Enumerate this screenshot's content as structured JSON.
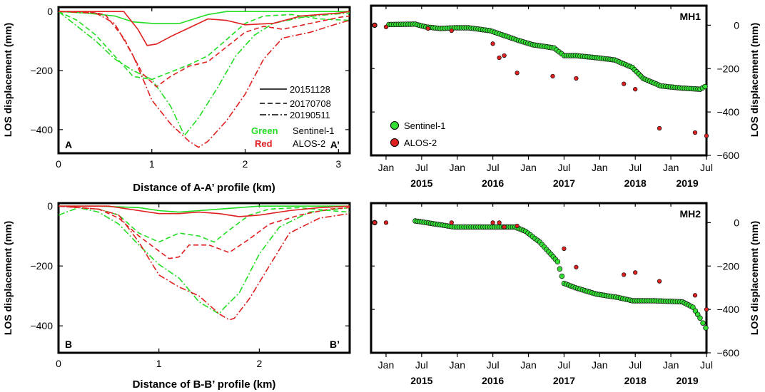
{
  "chart_data": [
    {
      "id": "profile_a",
      "type": "line",
      "corner_left": "A",
      "corner_right": "A’",
      "xlabel": "Distance of A-A’ profile (km)",
      "ylabel": "LOS displacement (mm)",
      "xlim": [
        0,
        3.12
      ],
      "ylim": [
        -480,
        15
      ],
      "xticks": [
        0,
        1,
        2,
        3
      ],
      "yticks": [
        0,
        -200,
        -400
      ],
      "legend_styles": [
        {
          "label": "20151128",
          "dash": "solid"
        },
        {
          "label": "20170708",
          "dash": "dashed"
        },
        {
          "label": "20190511",
          "dash": "dashdot"
        }
      ],
      "legend_colors": [
        {
          "color_word": "Green",
          "sensor": "Sentinel-1",
          "color": "#22dd22"
        },
        {
          "color_word": "Red",
          "sensor": "ALOS-2",
          "color": "#e02020"
        }
      ],
      "series": [
        {
          "name": "Sentinel-1 20151128",
          "color": "#22dd22",
          "dash": "solid",
          "x": [
            0,
            0.3,
            0.6,
            0.8,
            1.0,
            1.3,
            1.6,
            1.8,
            2.1,
            2.5,
            3.0,
            3.12
          ],
          "y": [
            0,
            -5,
            -15,
            -35,
            -40,
            -40,
            -10,
            0,
            0,
            0,
            0,
            0
          ]
        },
        {
          "name": "Sentinel-1 20170708",
          "color": "#22dd22",
          "dash": "dashed",
          "x": [
            0,
            0.2,
            0.4,
            0.6,
            0.8,
            1.0,
            1.2,
            1.4,
            1.6,
            1.8,
            2.0,
            2.2,
            2.5,
            2.8,
            3.12
          ],
          "y": [
            0,
            -30,
            -80,
            -150,
            -220,
            -230,
            -205,
            -180,
            -150,
            -95,
            -40,
            -15,
            -10,
            -25,
            -30
          ]
        },
        {
          "name": "Sentinel-1 20190511",
          "color": "#22dd22",
          "dash": "dashdot",
          "x": [
            0,
            0.2,
            0.4,
            0.6,
            0.8,
            1.0,
            1.2,
            1.35,
            1.5,
            1.7,
            1.9,
            2.1,
            2.3,
            2.6,
            2.9,
            3.12
          ],
          "y": [
            0,
            -50,
            -100,
            -160,
            -200,
            -230,
            -320,
            -420,
            -360,
            -260,
            -150,
            -80,
            -40,
            -20,
            -10,
            -5
          ]
        },
        {
          "name": "ALOS-2 20151128",
          "color": "#e02020",
          "dash": "solid",
          "x": [
            0,
            0.5,
            0.7,
            0.85,
            0.95,
            1.05,
            1.2,
            1.4,
            1.6,
            1.8,
            2.0,
            2.3,
            2.6,
            3.0,
            3.12
          ],
          "y": [
            0,
            0,
            0,
            -60,
            -115,
            -110,
            -85,
            -55,
            -25,
            -30,
            -45,
            -40,
            -15,
            -5,
            0
          ]
        },
        {
          "name": "ALOS-2 20170708",
          "color": "#e02020",
          "dash": "dashed",
          "x": [
            0,
            0.3,
            0.5,
            0.7,
            0.9,
            1.05,
            1.2,
            1.4,
            1.6,
            1.8,
            2.0,
            2.2,
            2.4,
            2.7,
            3.0,
            3.12
          ],
          "y": [
            0,
            0,
            -10,
            -90,
            -210,
            -255,
            -220,
            -185,
            -170,
            -120,
            -70,
            -50,
            -60,
            -40,
            -20,
            -15
          ]
        },
        {
          "name": "ALOS-2 20190511",
          "color": "#e02020",
          "dash": "dashdot",
          "x": [
            0,
            0.4,
            0.6,
            0.8,
            1.0,
            1.2,
            1.4,
            1.5,
            1.6,
            1.8,
            2.0,
            2.2,
            2.4,
            2.7,
            3.0,
            3.12
          ],
          "y": [
            0,
            -5,
            -40,
            -150,
            -300,
            -380,
            -440,
            -460,
            -440,
            -370,
            -280,
            -160,
            -90,
            -70,
            -40,
            -30
          ]
        }
      ]
    },
    {
      "id": "timeseries_mh1",
      "type": "scatter",
      "label": "MH1",
      "ylabel": "LOS displacement (mm)",
      "ylim": [
        -600,
        90
      ],
      "yticks": [
        0,
        -200,
        -400,
        -600
      ],
      "xlim": [
        2014.83,
        2019.54
      ],
      "month_ticks": [
        {
          "t": 2015.04,
          "label": "Jan"
        },
        {
          "t": 2015.54,
          "label": "Jul"
        },
        {
          "t": 2016.04,
          "label": "Jan"
        },
        {
          "t": 2016.54,
          "label": "Jul"
        },
        {
          "t": 2017.04,
          "label": "Jan"
        },
        {
          "t": 2017.54,
          "label": "Jul"
        },
        {
          "t": 2018.04,
          "label": "Jan"
        },
        {
          "t": 2018.54,
          "label": "Jul"
        },
        {
          "t": 2019.04,
          "label": "Jan"
        },
        {
          "t": 2019.54,
          "label": "Jul"
        }
      ],
      "year_labels": [
        {
          "t": 2015.54,
          "label": "2015"
        },
        {
          "t": 2016.54,
          "label": "2016"
        },
        {
          "t": 2017.54,
          "label": "2017"
        },
        {
          "t": 2018.54,
          "label": "2018"
        },
        {
          "t": 2019.27,
          "label": "2019"
        }
      ],
      "legend": [
        {
          "label": "Sentinel-1",
          "color": "#33dd33"
        },
        {
          "label": "ALOS-2",
          "color": "#e02020"
        }
      ],
      "series": [
        {
          "name": "Sentinel-1",
          "color": "#33dd33",
          "type": "profile",
          "points": [
            [
              2014.88,
              0
            ],
            [
              2015.08,
              3
            ],
            [
              2015.45,
              5
            ],
            [
              2015.6,
              -8
            ],
            [
              2015.8,
              -15
            ],
            [
              2016.0,
              -12
            ],
            [
              2016.2,
              -12
            ],
            [
              2016.5,
              -25
            ],
            [
              2016.9,
              -70
            ],
            [
              2017.1,
              -90
            ],
            [
              2017.4,
              -105
            ],
            [
              2017.54,
              -140
            ],
            [
              2017.7,
              -140
            ],
            [
              2018.0,
              -150
            ],
            [
              2018.25,
              -160
            ],
            [
              2018.5,
              -195
            ],
            [
              2018.65,
              -245
            ],
            [
              2018.9,
              -280
            ],
            [
              2019.2,
              -290
            ],
            [
              2019.45,
              -295
            ],
            [
              2019.52,
              -283
            ]
          ]
        },
        {
          "name": "ALOS-2",
          "color": "#e02020",
          "type": "points",
          "points": [
            [
              2014.88,
              0
            ],
            [
              2015.04,
              -8
            ],
            [
              2015.63,
              -15
            ],
            [
              2015.96,
              -25
            ],
            [
              2016.54,
              -85
            ],
            [
              2016.63,
              -150
            ],
            [
              2016.7,
              -140
            ],
            [
              2016.88,
              -220
            ],
            [
              2017.38,
              -235
            ],
            [
              2017.71,
              -245
            ],
            [
              2018.38,
              -270
            ],
            [
              2018.54,
              -295
            ],
            [
              2018.88,
              -475
            ],
            [
              2019.38,
              -495
            ],
            [
              2019.54,
              -510
            ]
          ]
        }
      ]
    },
    {
      "id": "profile_b",
      "type": "line",
      "corner_left": "B",
      "corner_right": "B’",
      "xlabel": "Distance of B-B’ profile (km)",
      "ylabel": "LOS displacement (mm)",
      "xlim": [
        0,
        2.9
      ],
      "ylim": [
        -490,
        10
      ],
      "xticks": [
        0,
        1,
        2
      ],
      "yticks": [
        0,
        -200,
        -400
      ],
      "series": [
        {
          "name": "Sentinel-1 20151128",
          "color": "#22dd22",
          "dash": "solid",
          "x": [
            0,
            0.4,
            0.8,
            1.0,
            1.2,
            1.4,
            1.6,
            1.8,
            2.0,
            2.3,
            2.6,
            2.9
          ],
          "y": [
            0,
            0,
            -5,
            -15,
            -20,
            -15,
            -10,
            -5,
            0,
            0,
            0,
            0
          ]
        },
        {
          "name": "Sentinel-1 20170708",
          "color": "#22dd22",
          "dash": "dashed",
          "x": [
            0,
            0.4,
            0.6,
            0.8,
            1.0,
            1.2,
            1.4,
            1.55,
            1.7,
            1.9,
            2.1,
            2.4,
            2.7,
            2.9
          ],
          "y": [
            0,
            -10,
            -30,
            -90,
            -120,
            -90,
            -100,
            -120,
            -80,
            -30,
            -10,
            -5,
            -15,
            -20
          ]
        },
        {
          "name": "Sentinel-1 20190511",
          "color": "#22dd22",
          "dash": "dashdot",
          "x": [
            0,
            0.2,
            0.4,
            0.6,
            0.8,
            1.0,
            1.2,
            1.4,
            1.6,
            1.65,
            1.8,
            2.0,
            2.2,
            2.5,
            2.9
          ],
          "y": [
            -30,
            -5,
            -20,
            -60,
            -130,
            -195,
            -240,
            -320,
            -360,
            -340,
            -290,
            -160,
            -70,
            -20,
            -5
          ]
        },
        {
          "name": "ALOS-2 20151128",
          "color": "#e02020",
          "dash": "solid",
          "x": [
            0,
            0.5,
            0.8,
            1.0,
            1.2,
            1.4,
            1.6,
            1.8,
            2.0,
            2.3,
            2.6,
            2.9
          ],
          "y": [
            0,
            0,
            -15,
            -25,
            -25,
            -20,
            -25,
            -35,
            -30,
            -15,
            -5,
            0
          ]
        },
        {
          "name": "ALOS-2 20170708",
          "color": "#e02020",
          "dash": "dashed",
          "x": [
            0,
            0.4,
            0.6,
            0.8,
            1.0,
            1.1,
            1.2,
            1.3,
            1.5,
            1.7,
            1.9,
            2.1,
            2.4,
            2.7,
            2.9
          ],
          "y": [
            0,
            -10,
            -40,
            -100,
            -150,
            -175,
            -170,
            -130,
            -130,
            -155,
            -110,
            -60,
            -30,
            -10,
            -5
          ]
        },
        {
          "name": "ALOS-2 20190511",
          "color": "#e02020",
          "dash": "dashdot",
          "x": [
            0,
            0.4,
            0.6,
            0.8,
            1.0,
            1.2,
            1.4,
            1.6,
            1.7,
            1.75,
            1.9,
            2.1,
            2.3,
            2.6,
            2.9
          ],
          "y": [
            0,
            -10,
            -30,
            -120,
            -230,
            -270,
            -300,
            -360,
            -380,
            -375,
            -310,
            -200,
            -90,
            -40,
            -25
          ]
        }
      ]
    },
    {
      "id": "timeseries_mh2",
      "type": "scatter",
      "label": "MH2",
      "ylabel": "LOS displacement (mm)",
      "ylim": [
        -600,
        90
      ],
      "yticks": [
        0,
        -200,
        -400,
        -600
      ],
      "xlim": [
        2014.83,
        2019.54
      ],
      "month_ticks": [
        {
          "t": 2015.04,
          "label": "Jan"
        },
        {
          "t": 2015.54,
          "label": "Jul"
        },
        {
          "t": 2016.04,
          "label": "Jan"
        },
        {
          "t": 2016.54,
          "label": "Jul"
        },
        {
          "t": 2017.04,
          "label": "Jan"
        },
        {
          "t": 2017.54,
          "label": "Jul"
        },
        {
          "t": 2018.04,
          "label": "Jan"
        },
        {
          "t": 2018.54,
          "label": "Jul"
        },
        {
          "t": 2019.04,
          "label": "Jan"
        },
        {
          "t": 2019.54,
          "label": "Jul"
        }
      ],
      "year_labels": [
        {
          "t": 2015.54,
          "label": "2015"
        },
        {
          "t": 2016.54,
          "label": "2016"
        },
        {
          "t": 2017.54,
          "label": "2017"
        },
        {
          "t": 2018.54,
          "label": "2018"
        },
        {
          "t": 2019.27,
          "label": "2019"
        }
      ],
      "series": [
        {
          "name": "Sentinel-1",
          "color": "#33dd33",
          "type": "profile",
          "points": [
            [
              2014.88,
              0
            ],
            [
              2015.45,
              8
            ],
            [
              2015.7,
              -5
            ],
            [
              2016.0,
              -20
            ],
            [
              2016.5,
              -20
            ],
            [
              2016.85,
              -20
            ],
            [
              2017.0,
              -40
            ],
            [
              2017.2,
              -90
            ],
            [
              2017.45,
              -180
            ],
            [
              2017.54,
              -280
            ],
            [
              2017.7,
              -300
            ],
            [
              2018.0,
              -330
            ],
            [
              2018.3,
              -345
            ],
            [
              2018.5,
              -360
            ],
            [
              2018.8,
              -360
            ],
            [
              2019.2,
              -365
            ],
            [
              2019.35,
              -390
            ],
            [
              2019.45,
              -440
            ],
            [
              2019.53,
              -485
            ]
          ]
        },
        {
          "name": "ALOS-2",
          "color": "#e02020",
          "type": "points",
          "points": [
            [
              2014.88,
              0
            ],
            [
              2015.04,
              0
            ],
            [
              2015.96,
              0
            ],
            [
              2016.54,
              0
            ],
            [
              2016.63,
              0
            ],
            [
              2016.7,
              -20
            ],
            [
              2016.88,
              -15
            ],
            [
              2017.54,
              -120
            ],
            [
              2017.71,
              -205
            ],
            [
              2018.38,
              -240
            ],
            [
              2018.54,
              -230
            ],
            [
              2018.88,
              -270
            ],
            [
              2019.38,
              -335
            ],
            [
              2019.54,
              -400
            ]
          ]
        }
      ]
    }
  ]
}
